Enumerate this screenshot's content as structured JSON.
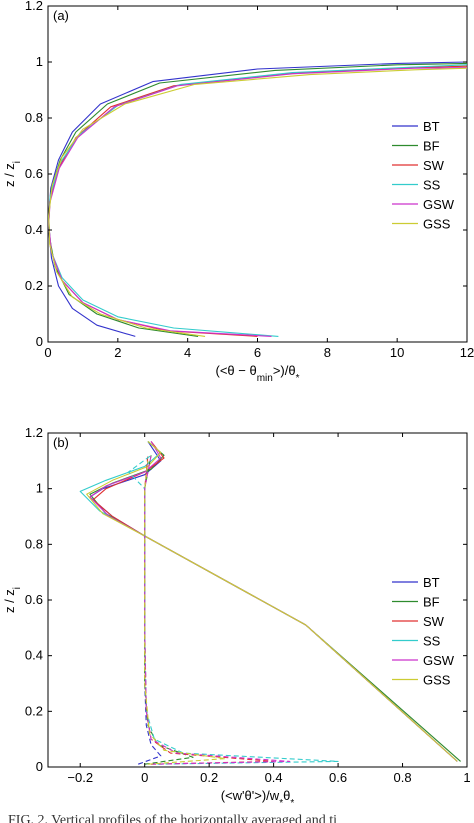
{
  "figure": {
    "caption": "FIG. 2. Vertical profiles of the horizontally averaged and ti"
  },
  "chart_data": [
    {
      "type": "line",
      "panel_label": "(a)",
      "xlabel": "(<θ − θmin>)/θ*",
      "ylabel": "z / zi",
      "xlim": [
        0,
        12
      ],
      "ylim": [
        0,
        1.2
      ],
      "xticks": [
        "0",
        "2",
        "4",
        "6",
        "8",
        "10",
        "12"
      ],
      "yticks": [
        "0",
        "0.2",
        "0.4",
        "0.6",
        "0.8",
        "1",
        "1.2"
      ],
      "grid": false,
      "legend_position": "right",
      "series": [
        {
          "name": "BT",
          "color": "#3333cc",
          "dashed": false,
          "points": [
            [
              2.5,
              0.02
            ],
            [
              1.4,
              0.06
            ],
            [
              0.7,
              0.12
            ],
            [
              0.3,
              0.2
            ],
            [
              0.1,
              0.3
            ],
            [
              0.02,
              0.4
            ],
            [
              0.02,
              0.45
            ],
            [
              0.08,
              0.55
            ],
            [
              0.3,
              0.65
            ],
            [
              0.7,
              0.75
            ],
            [
              1.5,
              0.85
            ],
            [
              3,
              0.93
            ],
            [
              6,
              0.975
            ],
            [
              10,
              0.995
            ],
            [
              12,
              1.0
            ]
          ]
        },
        {
          "name": "BF",
          "color": "#2e8b2e",
          "dashed": false,
          "points": [
            [
              4.3,
              0.02
            ],
            [
              2.6,
              0.05
            ],
            [
              1.4,
              0.1
            ],
            [
              0.6,
              0.17
            ],
            [
              0.2,
              0.27
            ],
            [
              0.05,
              0.37
            ],
            [
              0.02,
              0.45
            ],
            [
              0.1,
              0.55
            ],
            [
              0.35,
              0.65
            ],
            [
              0.8,
              0.75
            ],
            [
              1.7,
              0.85
            ],
            [
              3.2,
              0.925
            ],
            [
              6.5,
              0.97
            ],
            [
              10,
              0.99
            ],
            [
              12,
              0.995
            ]
          ]
        },
        {
          "name": "SW",
          "color": "#e03030",
          "dashed": false,
          "points": [
            [
              6.0,
              0.02
            ],
            [
              3.4,
              0.04
            ],
            [
              2.0,
              0.08
            ],
            [
              1.0,
              0.14
            ],
            [
              0.4,
              0.22
            ],
            [
              0.1,
              0.32
            ],
            [
              0.02,
              0.42
            ],
            [
              0.05,
              0.5
            ],
            [
              0.3,
              0.62
            ],
            [
              0.8,
              0.73
            ],
            [
              1.8,
              0.84
            ],
            [
              3.6,
              0.915
            ],
            [
              7,
              0.96
            ],
            [
              10.5,
              0.98
            ],
            [
              12,
              0.985
            ]
          ]
        },
        {
          "name": "SS",
          "color": "#33cccc",
          "dashed": false,
          "points": [
            [
              6.6,
              0.02
            ],
            [
              3.6,
              0.05
            ],
            [
              2.0,
              0.09
            ],
            [
              1.0,
              0.15
            ],
            [
              0.4,
              0.23
            ],
            [
              0.1,
              0.32
            ],
            [
              0.02,
              0.42
            ],
            [
              0.06,
              0.52
            ],
            [
              0.35,
              0.64
            ],
            [
              0.9,
              0.74
            ],
            [
              2.0,
              0.845
            ],
            [
              3.8,
              0.92
            ],
            [
              7,
              0.962
            ],
            [
              10.5,
              0.982
            ],
            [
              12,
              0.99
            ]
          ]
        },
        {
          "name": "GSW",
          "color": "#cc33cc",
          "dashed": false,
          "points": [
            [
              6.4,
              0.02
            ],
            [
              3.5,
              0.04
            ],
            [
              2.0,
              0.08
            ],
            [
              1.0,
              0.14
            ],
            [
              0.4,
              0.22
            ],
            [
              0.1,
              0.32
            ],
            [
              0.02,
              0.42
            ],
            [
              0.06,
              0.5
            ],
            [
              0.32,
              0.62
            ],
            [
              0.85,
              0.73
            ],
            [
              1.9,
              0.84
            ],
            [
              3.7,
              0.915
            ],
            [
              7,
              0.958
            ],
            [
              10.5,
              0.978
            ],
            [
              12,
              0.98
            ]
          ]
        },
        {
          "name": "GSS",
          "color": "#cccc33",
          "dashed": false,
          "points": [
            [
              4.5,
              0.02
            ],
            [
              2.8,
              0.05
            ],
            [
              1.5,
              0.1
            ],
            [
              0.7,
              0.16
            ],
            [
              0.25,
              0.25
            ],
            [
              0.05,
              0.35
            ],
            [
              0.02,
              0.45
            ],
            [
              0.12,
              0.56
            ],
            [
              0.4,
              0.66
            ],
            [
              1.0,
              0.76
            ],
            [
              2.2,
              0.85
            ],
            [
              4.2,
              0.92
            ],
            [
              7.5,
              0.955
            ],
            [
              10.5,
              0.972
            ],
            [
              12,
              0.978
            ]
          ]
        }
      ]
    },
    {
      "type": "line",
      "panel_label": "(b)",
      "xlabel": "(<w'θ'>)/w*θ*",
      "ylabel": "z / zi",
      "xlim": [
        -0.3,
        1
      ],
      "ylim": [
        0,
        1.2
      ],
      "xticks": [
        "−0.2",
        "0",
        "0.2",
        "0.4",
        "0.6",
        "0.8",
        "1"
      ],
      "yticks": [
        "0",
        "0.2",
        "0.4",
        "0.6",
        "0.8",
        "1",
        "1.2"
      ],
      "grid": false,
      "legend_position": "right",
      "series": [
        {
          "name": "BT",
          "color": "#3333cc",
          "dashed": false,
          "points": [
            [
              0.97,
              0.02
            ],
            [
              0.5,
              0.51
            ],
            [
              0,
              0.83
            ],
            [
              -0.1,
              0.9
            ],
            [
              -0.17,
              0.97
            ],
            [
              -0.13,
              1.0
            ],
            [
              0.0,
              1.05
            ],
            [
              0.05,
              1.1
            ],
            [
              0.01,
              1.17
            ]
          ]
        },
        {
          "name": "BF",
          "color": "#2e8b2e",
          "dashed": false,
          "points": [
            [
              0.98,
              0.02
            ],
            [
              0.5,
              0.51
            ],
            [
              0,
              0.83
            ],
            [
              -0.12,
              0.91
            ],
            [
              -0.17,
              0.98
            ],
            [
              -0.1,
              1.02
            ],
            [
              0.02,
              1.07
            ],
            [
              0.06,
              1.12
            ],
            [
              0.01,
              1.17
            ]
          ]
        },
        {
          "name": "SW",
          "color": "#e03030",
          "dashed": false,
          "points": [
            [
              0.97,
              0.02
            ],
            [
              0.5,
              0.51
            ],
            [
              0,
              0.83
            ],
            [
              -0.1,
              0.9
            ],
            [
              -0.16,
              0.96
            ],
            [
              -0.12,
              1.0
            ],
            [
              0.0,
              1.06
            ],
            [
              0.06,
              1.11
            ],
            [
              0.02,
              1.17
            ]
          ]
        },
        {
          "name": "SS",
          "color": "#33cccc",
          "dashed": false,
          "points": [
            [
              0.97,
              0.02
            ],
            [
              0.5,
              0.51
            ],
            [
              0,
              0.83
            ],
            [
              -0.14,
              0.92
            ],
            [
              -0.2,
              0.99
            ],
            [
              -0.12,
              1.03
            ],
            [
              0.0,
              1.08
            ],
            [
              0.05,
              1.13
            ],
            [
              0.01,
              1.17
            ]
          ]
        },
        {
          "name": "GSW",
          "color": "#cc33cc",
          "dashed": false,
          "points": [
            [
              0.97,
              0.02
            ],
            [
              0.5,
              0.51
            ],
            [
              0,
              0.83
            ],
            [
              -0.11,
              0.9
            ],
            [
              -0.17,
              0.97
            ],
            [
              -0.12,
              1.01
            ],
            [
              0.0,
              1.06
            ],
            [
              0.05,
              1.11
            ],
            [
              0.02,
              1.17
            ]
          ]
        },
        {
          "name": "GSS",
          "color": "#cccc33",
          "dashed": false,
          "points": [
            [
              0.97,
              0.02
            ],
            [
              0.5,
              0.51
            ],
            [
              0,
              0.83
            ],
            [
              -0.13,
              0.91
            ],
            [
              -0.18,
              0.98
            ],
            [
              -0.1,
              1.03
            ],
            [
              0.01,
              1.08
            ],
            [
              0.05,
              1.13
            ],
            [
              0.01,
              1.17
            ]
          ]
        },
        {
          "name": "",
          "color": "#3333cc",
          "dashed": true,
          "points": [
            [
              -0.02,
              0.01
            ],
            [
              0.05,
              0.04
            ],
            [
              0.02,
              0.08
            ],
            [
              0.005,
              0.15
            ],
            [
              0.0,
              0.3
            ],
            [
              0.0,
              0.7
            ],
            [
              0.0,
              1.0
            ],
            [
              0.01,
              1.1
            ]
          ]
        },
        {
          "name": "",
          "color": "#2e8b2e",
          "dashed": true,
          "points": [
            [
              0.0,
              0.01
            ],
            [
              0.15,
              0.035
            ],
            [
              0.04,
              0.08
            ],
            [
              0.01,
              0.15
            ],
            [
              0.0,
              0.3
            ],
            [
              0.0,
              0.7
            ],
            [
              0.0,
              1.0
            ],
            [
              0.02,
              1.12
            ]
          ]
        },
        {
          "name": "",
          "color": "#e03030",
          "dashed": true,
          "points": [
            [
              0.02,
              0.01
            ],
            [
              0.4,
              0.02
            ],
            [
              0.08,
              0.05
            ],
            [
              0.02,
              0.1
            ],
            [
              0.005,
              0.2
            ],
            [
              0.0,
              0.5
            ],
            [
              0.0,
              1.0
            ],
            [
              0.01,
              1.12
            ]
          ]
        },
        {
          "name": "",
          "color": "#33cccc",
          "dashed": true,
          "points": [
            [
              0.04,
              0.01
            ],
            [
              0.6,
              0.02
            ],
            [
              0.12,
              0.05
            ],
            [
              0.03,
              0.1
            ],
            [
              0.005,
              0.2
            ],
            [
              0.0,
              0.5
            ],
            [
              0.0,
              1.0
            ],
            [
              -0.05,
              1.06
            ],
            [
              0.02,
              1.12
            ]
          ]
        },
        {
          "name": "",
          "color": "#cc33cc",
          "dashed": true,
          "points": [
            [
              0.02,
              0.01
            ],
            [
              0.45,
              0.02
            ],
            [
              0.1,
              0.05
            ],
            [
              0.02,
              0.1
            ],
            [
              0.005,
              0.2
            ],
            [
              0.0,
              0.5
            ],
            [
              0.0,
              1.0
            ],
            [
              0.02,
              1.12
            ]
          ]
        },
        {
          "name": "",
          "color": "#cccc33",
          "dashed": true,
          "points": [
            [
              0.01,
              0.01
            ],
            [
              0.25,
              0.03
            ],
            [
              0.06,
              0.06
            ],
            [
              0.015,
              0.12
            ],
            [
              0.0,
              0.3
            ],
            [
              0.0,
              0.7
            ],
            [
              0.0,
              1.0
            ],
            [
              0.01,
              1.1
            ]
          ]
        }
      ]
    }
  ]
}
